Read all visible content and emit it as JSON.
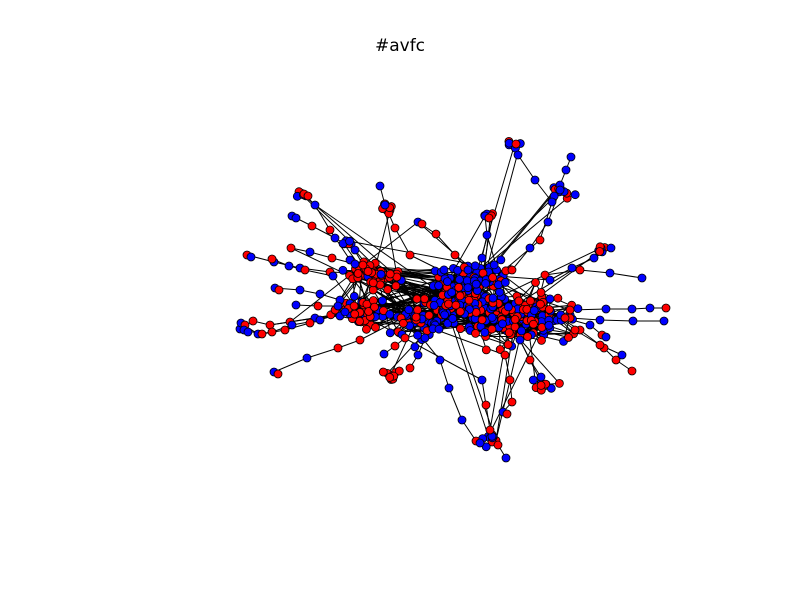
{
  "figure": {
    "title": "#avfc"
  },
  "colors": {
    "background": "#ffffff",
    "node_red": "#ff0000",
    "node_blue": "#0000ff",
    "node_stroke": "#000000",
    "edge": "#000000"
  }
}
